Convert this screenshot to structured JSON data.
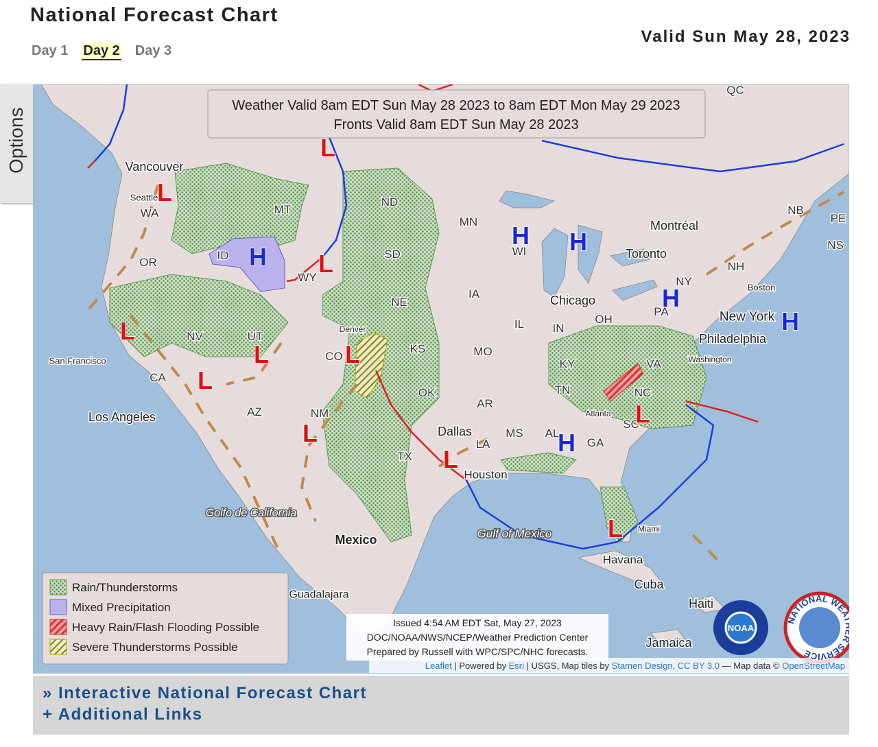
{
  "header": {
    "title": "National Forecast Chart",
    "valid": "Valid Sun May 28, 2023",
    "tabs": [
      "Day 1",
      "Day 2",
      "Day 3"
    ],
    "active_tab": 1,
    "options": "Options"
  },
  "map": {
    "banner": [
      "Weather Valid 8am EDT Sun May 28 2023 to 8am EDT Mon May 29 2023",
      "Fronts Valid 8am EDT Sun May 28 2023"
    ],
    "regions": [
      "WA",
      "OR",
      "CA",
      "NV",
      "ID",
      "MT",
      "WY",
      "UT",
      "CO",
      "AZ",
      "NM",
      "ND",
      "SD",
      "NE",
      "KS",
      "OK",
      "TX",
      "MN",
      "IA",
      "MO",
      "AR",
      "LA",
      "WI",
      "IL",
      "IN",
      "KY",
      "TN",
      "MS",
      "AL",
      "GA",
      "OH",
      "PA",
      "NY",
      "VA",
      "NC",
      "SC",
      "NH",
      "NB",
      "NS",
      "QC",
      "PE"
    ],
    "places": [
      "Vancouver",
      "Seattle",
      "San Francisco",
      "Los Angeles",
      "Denver",
      "Dallas",
      "Houston",
      "Chicago",
      "Toronto",
      "Montréal",
      "Boston",
      "New York",
      "Philadelphia",
      "Washington",
      "Atlanta",
      "Miami",
      "Havana",
      "Mexico",
      "Golfo de California",
      "Gulf of Mexico",
      "Guadalajara",
      "Cuba",
      "Haiti",
      "Jamaica"
    ],
    "highs": [
      "H",
      "H",
      "H",
      "H",
      "H",
      "H"
    ],
    "lows": [
      "L",
      "L",
      "L",
      "L",
      "L",
      "L",
      "L",
      "L",
      "L",
      "L",
      "L"
    ],
    "legend": [
      "Rain/Thunderstorms",
      "Mixed Precipitation",
      "Heavy Rain/Flash Flooding Possible",
      "Severe Thunderstorms Possible"
    ],
    "issued": [
      "Issued 4:54 AM EDT Sat, May 27, 2023",
      "DOC/NOAA/NWS/NCEP/Weather Prediction Center",
      "Prepared by Russell with WPC/SPC/NHC forecasts."
    ],
    "attribution": [
      {
        "text": "Leaflet",
        "link": true
      },
      {
        "text": " | Powered by ",
        "link": false
      },
      {
        "text": "Esri",
        "link": true
      },
      {
        "text": " | USGS, Map tiles by ",
        "link": false
      },
      {
        "text": "Stamen Design",
        "link": true
      },
      {
        "text": ", ",
        "link": false
      },
      {
        "text": "CC BY 3.0",
        "link": true
      },
      {
        "text": " — Map data © ",
        "link": false
      },
      {
        "text": "OpenStreetMap",
        "link": true
      }
    ],
    "logos": [
      "NOAA",
      "NATIONAL WEATHER SERVICE"
    ]
  },
  "links": [
    "» Interactive National Forecast Chart",
    "+ Additional Links"
  ]
}
